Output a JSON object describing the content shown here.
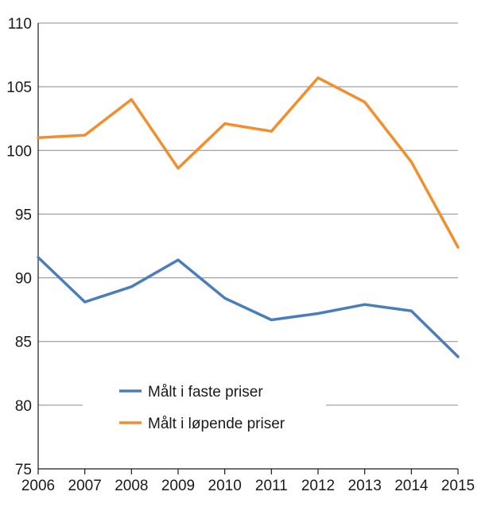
{
  "chart_data": {
    "type": "line",
    "title": "",
    "xlabel": "",
    "ylabel": "",
    "categories": [
      "2006",
      "2007",
      "2008",
      "2009",
      "2010",
      "2011",
      "2012",
      "2013",
      "2014",
      "2015"
    ],
    "ylim": [
      75,
      110
    ],
    "yticks": [
      75,
      80,
      85,
      90,
      95,
      100,
      105,
      110
    ],
    "grid": "horizontal",
    "legend_position": "lower-left",
    "series": [
      {
        "name": "Målt i faste priser",
        "color": "#4a7ebb",
        "values": [
          91.6,
          88.1,
          89.3,
          91.4,
          88.4,
          86.7,
          87.2,
          87.9,
          87.4,
          83.8
        ]
      },
      {
        "name": "Målt i løpende priser",
        "color": "#f28e2b",
        "values": [
          101.0,
          101.2,
          104.0,
          98.6,
          102.1,
          101.5,
          105.7,
          103.8,
          99.1,
          92.4
        ]
      }
    ]
  }
}
